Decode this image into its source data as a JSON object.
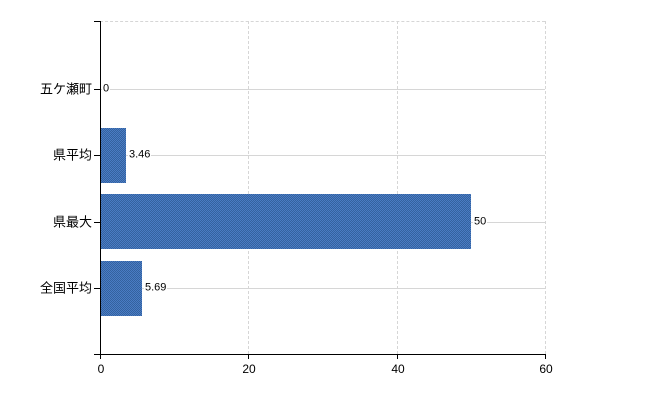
{
  "chart_data": {
    "type": "bar",
    "orientation": "horizontal",
    "title": "",
    "xlabel": "",
    "ylabel": "",
    "categories": [
      "五ケ瀬町",
      "県平均",
      "県最大",
      "全国平均"
    ],
    "values": [
      0,
      3.46,
      50,
      5.69
    ],
    "value_labels": [
      "0",
      "3.46",
      "50",
      "5.69"
    ],
    "x_ticks": [
      0,
      20,
      40,
      60
    ],
    "x_tick_labels": [
      "0",
      "20",
      "40",
      "60"
    ],
    "xlim": [
      0,
      60
    ],
    "grid": true,
    "legend": false,
    "colors": {
      "bar": "#3F6FB1",
      "bar_texture_light": "#4A7CC4",
      "bar_texture_dark": "#34629F",
      "gridline": "#D6D6D6",
      "axis": "#000000",
      "text": "#000000",
      "background": "#FFFFFF"
    }
  }
}
